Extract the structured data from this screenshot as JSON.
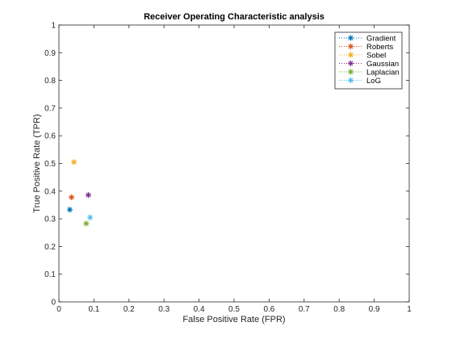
{
  "chart_data": {
    "type": "scatter",
    "title": "Receiver Operating Characteristic analysis",
    "xlabel": "False Positive Rate (FPR)",
    "ylabel": "True Positive Rate (TPR)",
    "xlim": [
      0,
      1
    ],
    "ylim": [
      0,
      1
    ],
    "xticks": [
      "0",
      "0.1",
      "0.2",
      "0.3",
      "0.4",
      "0.5",
      "0.6",
      "0.7",
      "0.8",
      "0.9",
      "1"
    ],
    "yticks": [
      "0",
      "0.1",
      "0.2",
      "0.3",
      "0.4",
      "0.5",
      "0.6",
      "0.7",
      "0.8",
      "0.9",
      "1"
    ],
    "grid": false,
    "legend_position": "top-right",
    "marker": "*",
    "series": [
      {
        "name": "Gradient",
        "color": "#0072BD",
        "x": [
          0.031
        ],
        "y": [
          0.333
        ]
      },
      {
        "name": "Roberts",
        "color": "#D95319",
        "x": [
          0.036
        ],
        "y": [
          0.378
        ]
      },
      {
        "name": "Sobel",
        "color": "#EDB120",
        "x": [
          0.043
        ],
        "y": [
          0.505
        ]
      },
      {
        "name": "Gaussian",
        "color": "#7E2F8E",
        "x": [
          0.084
        ],
        "y": [
          0.386
        ]
      },
      {
        "name": "Laplacian",
        "color": "#77AC30",
        "x": [
          0.078
        ],
        "y": [
          0.283
        ]
      },
      {
        "name": "LoG",
        "color": "#4DBEEE",
        "x": [
          0.089
        ],
        "y": [
          0.305
        ]
      }
    ]
  }
}
